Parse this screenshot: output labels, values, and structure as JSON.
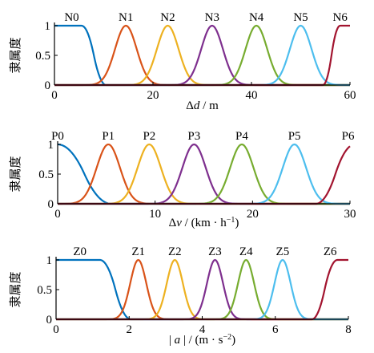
{
  "chart_data": [
    {
      "type": "line",
      "title": "",
      "xlabel": "Δd / m",
      "xlabel_parts": [
        [
          "Δ",
          "n"
        ],
        [
          "d",
          "i"
        ],
        [
          " / m",
          "n"
        ]
      ],
      "ylabel": "隶属度",
      "xlim": [
        0,
        60
      ],
      "ylim": [
        0,
        1
      ],
      "xticks": [
        0,
        20,
        40,
        60
      ],
      "xtick_labels": [
        "0",
        "20",
        "40",
        "60"
      ],
      "yticks": [
        0,
        0.5,
        1
      ],
      "ytick_labels": [
        "0",
        "0.5",
        "1"
      ],
      "series": [
        {
          "name": "N0",
          "shape": "zmf",
          "params": [
            5.5,
            10.5
          ],
          "label_x": 3.5,
          "color": "#0072BD"
        },
        {
          "name": "N1",
          "shape": "gauss",
          "params": [
            14.5,
            2.2
          ],
          "label_x": 14.5,
          "color": "#D95319"
        },
        {
          "name": "N2",
          "shape": "gauss",
          "params": [
            23.0,
            2.2
          ],
          "label_x": 23.0,
          "color": "#EDB120"
        },
        {
          "name": "N3",
          "shape": "gauss",
          "params": [
            32.0,
            2.2
          ],
          "label_x": 32.0,
          "color": "#7E2F8E"
        },
        {
          "name": "N4",
          "shape": "gauss",
          "params": [
            41.0,
            2.2
          ],
          "label_x": 41.0,
          "color": "#77AC30"
        },
        {
          "name": "N5",
          "shape": "gauss",
          "params": [
            50.0,
            2.2
          ],
          "label_x": 50.0,
          "color": "#4DBEEE"
        },
        {
          "name": "N6",
          "shape": "smf",
          "params": [
            54.5,
            58.0
          ],
          "label_x": 58.0,
          "color": "#A2142F"
        }
      ]
    },
    {
      "type": "line",
      "title": "",
      "xlabel": "Δv / (km·h⁻¹)",
      "xlabel_parts": [
        [
          "Δ",
          "n"
        ],
        [
          "v",
          "i"
        ],
        [
          " / (km · h",
          "n"
        ],
        [
          "−1",
          "sup"
        ],
        [
          ")",
          "n"
        ]
      ],
      "ylabel": "隶属度",
      "xlim": [
        0,
        30
      ],
      "ylim": [
        0,
        1
      ],
      "xticks": [
        0,
        10,
        20,
        30
      ],
      "xtick_labels": [
        "0",
        "10",
        "20",
        "30"
      ],
      "yticks": [
        0,
        0.5,
        1
      ],
      "ytick_labels": [
        "0",
        "0.5",
        "1"
      ],
      "series": [
        {
          "name": "P0",
          "shape": "zmf",
          "params": [
            0.0,
            5.5
          ],
          "label_x": 0.0,
          "color": "#0072BD"
        },
        {
          "name": "P1",
          "shape": "gauss",
          "params": [
            5.2,
            1.2
          ],
          "label_x": 5.2,
          "color": "#D95319"
        },
        {
          "name": "P2",
          "shape": "gauss",
          "params": [
            9.4,
            1.2
          ],
          "label_x": 9.4,
          "color": "#EDB120"
        },
        {
          "name": "P3",
          "shape": "gauss",
          "params": [
            14.0,
            1.2
          ],
          "label_x": 14.0,
          "color": "#7E2F8E"
        },
        {
          "name": "P4",
          "shape": "gauss",
          "params": [
            18.9,
            1.2
          ],
          "label_x": 18.9,
          "color": "#77AC30"
        },
        {
          "name": "P5",
          "shape": "gauss",
          "params": [
            24.3,
            1.2
          ],
          "label_x": 24.3,
          "color": "#4DBEEE"
        },
        {
          "name": "P6",
          "shape": "smf",
          "params": [
            26.5,
            30.5
          ],
          "label_x": 29.8,
          "color": "#A2142F"
        }
      ]
    },
    {
      "type": "line",
      "title": "",
      "xlabel": "| a | / (m·s⁻²)",
      "xlabel_parts": [
        [
          "| ",
          "n"
        ],
        [
          "a",
          "i"
        ],
        [
          " | / (m · s",
          "n"
        ],
        [
          "−2",
          "sup"
        ],
        [
          ")",
          "n"
        ]
      ],
      "ylabel": "隶属度",
      "xlim": [
        0,
        8
      ],
      "ylim": [
        0,
        1
      ],
      "xticks": [
        0,
        2,
        4,
        6,
        8
      ],
      "xtick_labels": [
        "0",
        "2",
        "4",
        "6",
        "8"
      ],
      "yticks": [
        0,
        0.5,
        1
      ],
      "ytick_labels": [
        "0",
        "0.5",
        "1"
      ],
      "series": [
        {
          "name": "Z0",
          "shape": "zmf",
          "params": [
            1.2,
            2.05
          ],
          "label_x": 0.65,
          "color": "#0072BD"
        },
        {
          "name": "Z1",
          "shape": "gauss",
          "params": [
            2.25,
            0.22
          ],
          "label_x": 2.25,
          "color": "#D95319"
        },
        {
          "name": "Z2",
          "shape": "gauss",
          "params": [
            3.25,
            0.22
          ],
          "label_x": 3.25,
          "color": "#EDB120"
        },
        {
          "name": "Z3",
          "shape": "gauss",
          "params": [
            4.35,
            0.22
          ],
          "label_x": 4.35,
          "color": "#7E2F8E"
        },
        {
          "name": "Z4",
          "shape": "gauss",
          "params": [
            5.2,
            0.22
          ],
          "label_x": 5.2,
          "color": "#77AC30"
        },
        {
          "name": "Z5",
          "shape": "gauss",
          "params": [
            6.2,
            0.22
          ],
          "label_x": 6.2,
          "color": "#4DBEEE"
        },
        {
          "name": "Z6",
          "shape": "smf",
          "params": [
            7.0,
            7.7
          ],
          "label_x": 7.5,
          "color": "#A2142F"
        }
      ]
    }
  ]
}
